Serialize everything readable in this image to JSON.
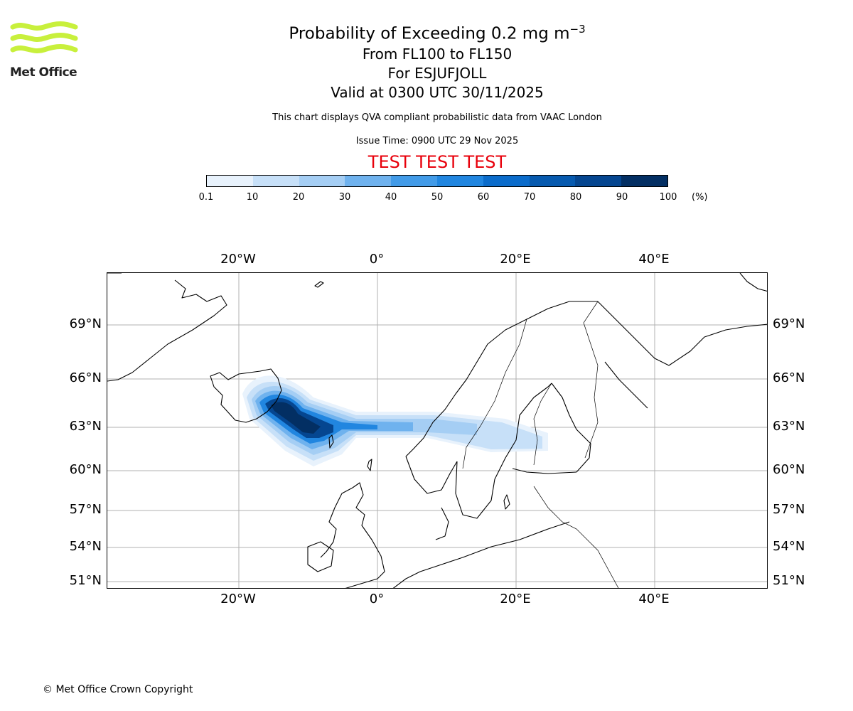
{
  "logo": {
    "text": "Met Office",
    "brand_color": "#c8f03c"
  },
  "header": {
    "title": "Probability of Exceeding 0.2 mg m",
    "title_exponent": "−3",
    "level_range": "From FL100 to FL150",
    "volcano": "For ESJUFJOLL",
    "valid_time": "Valid at 0300 UTC 30/11/2025",
    "source_note": "This chart displays QVA compliant probabilistic data from VAAC London",
    "issue_time": "Issue Time: 0900 UTC 29 Nov 2025",
    "test_banner": "TEST TEST TEST"
  },
  "colorbar": {
    "ticks": [
      "0.1",
      "10",
      "20",
      "30",
      "40",
      "50",
      "60",
      "70",
      "80",
      "90",
      "100"
    ],
    "unit": "(%)",
    "colors": [
      "#e8f2fc",
      "#c7e0f8",
      "#a5cef4",
      "#6fb2ee",
      "#429be8",
      "#2186e0",
      "#0b6ccb",
      "#075aaf",
      "#054690",
      "#032f63"
    ]
  },
  "map": {
    "lon_labels": [
      "20°W",
      "0°",
      "20°E",
      "40°E"
    ],
    "lat_labels": [
      "69°N",
      "66°N",
      "63°N",
      "60°N",
      "57°N",
      "54°N",
      "51°N"
    ],
    "coastline_color": "#000000",
    "gridline_color": "#b0b0b0"
  },
  "footer": {
    "copyright": "© Met Office Crown Copyright"
  }
}
